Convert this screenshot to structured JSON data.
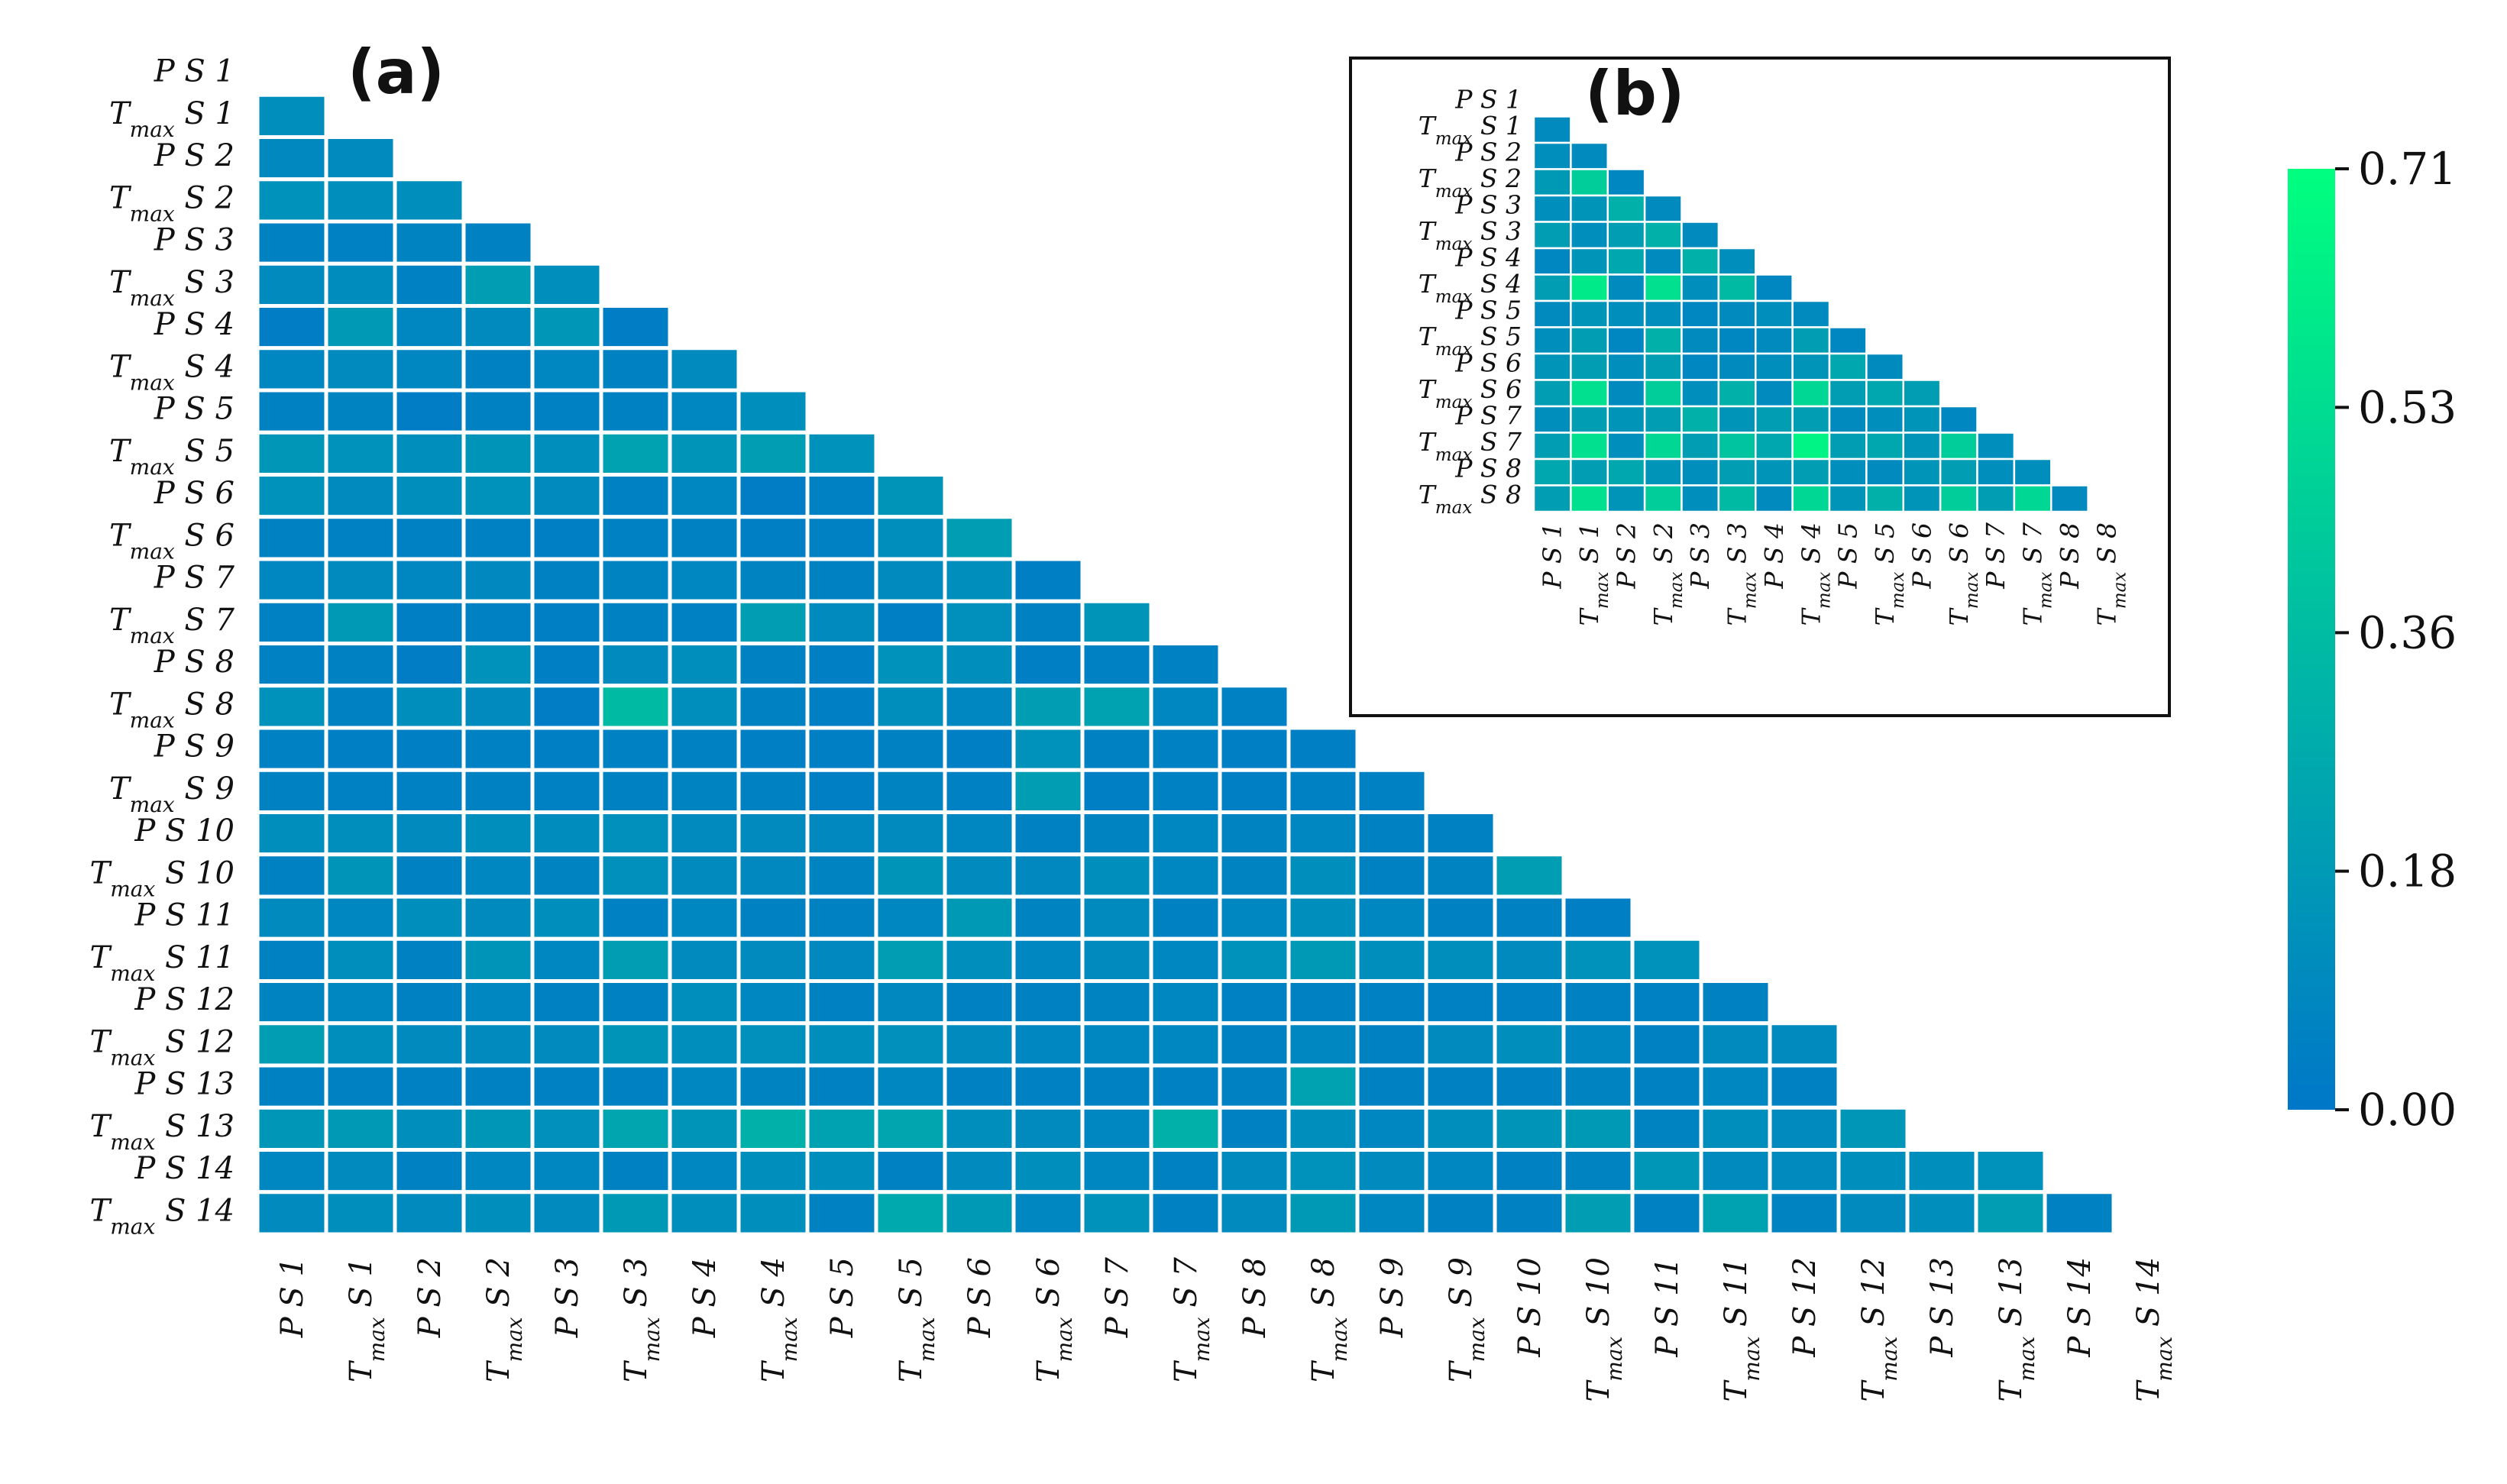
{
  "chart_data": [
    {
      "type": "heatmap",
      "panel_label": "(a)",
      "layout": "lower-triangle",
      "row_labels": [
        "P S 1",
        "T_max S 1",
        "P S 2",
        "T_max S 2",
        "P S 3",
        "T_max S 3",
        "P S 4",
        "T_max S 4",
        "P S 5",
        "T_max S 5",
        "P S 6",
        "T_max S 6",
        "P S 7",
        "T_max S 7",
        "P S 8",
        "T_max S 8",
        "P S 9",
        "T_max S 9",
        "P S 10",
        "T_max S 10",
        "P S 11",
        "T_max S 11",
        "P S 12",
        "T_max S 12",
        "P S 13",
        "T_max S 13",
        "P S 14",
        "T_max S 14"
      ],
      "col_labels": [
        "P S 1",
        "T_max S 1",
        "P S 2",
        "T_max S 2",
        "P S 3",
        "T_max S 3",
        "P S 4",
        "T_max S 4",
        "P S 5",
        "T_max S 5",
        "P S 6",
        "T_max S 6",
        "P S 7",
        "T_max S 7",
        "P S 8",
        "T_max S 8",
        "P S 9",
        "T_max S 9",
        "P S 10",
        "T_max S 10",
        "P S 11",
        "T_max S 11",
        "P S 12",
        "T_max S 12",
        "P S 13",
        "T_max S 13",
        "P S 14",
        "T_max S 14"
      ],
      "values": [
        [],
        [
          0.12
        ],
        [
          0.09,
          0.1
        ],
        [
          0.14,
          0.12,
          0.12
        ],
        [
          0.06,
          0.05,
          0.07,
          0.06
        ],
        [
          0.1,
          0.11,
          0.05,
          0.2,
          0.12
        ],
        [
          0.03,
          0.18,
          0.08,
          0.1,
          0.16,
          0.03
        ],
        [
          0.08,
          0.1,
          0.08,
          0.06,
          0.08,
          0.06,
          0.1
        ],
        [
          0.06,
          0.07,
          0.03,
          0.06,
          0.05,
          0.06,
          0.08,
          0.12
        ],
        [
          0.16,
          0.14,
          0.12,
          0.15,
          0.12,
          0.22,
          0.15,
          0.2,
          0.14
        ],
        [
          0.14,
          0.1,
          0.12,
          0.14,
          0.1,
          0.05,
          0.08,
          0.03,
          0.05,
          0.15
        ],
        [
          0.06,
          0.05,
          0.05,
          0.05,
          0.04,
          0.05,
          0.06,
          0.04,
          0.05,
          0.12,
          0.2
        ],
        [
          0.08,
          0.1,
          0.08,
          0.09,
          0.06,
          0.07,
          0.08,
          0.07,
          0.06,
          0.1,
          0.12,
          0.04
        ],
        [
          0.05,
          0.18,
          0.04,
          0.05,
          0.04,
          0.06,
          0.05,
          0.2,
          0.1,
          0.04,
          0.13,
          0.06,
          0.15
        ],
        [
          0.05,
          0.06,
          0.03,
          0.14,
          0.04,
          0.1,
          0.12,
          0.06,
          0.04,
          0.14,
          0.12,
          0.04,
          0.05,
          0.05
        ],
        [
          0.14,
          0.06,
          0.12,
          0.1,
          0.03,
          0.35,
          0.12,
          0.06,
          0.04,
          0.12,
          0.08,
          0.2,
          0.22,
          0.08,
          0.05
        ],
        [
          0.05,
          0.04,
          0.04,
          0.05,
          0.04,
          0.05,
          0.06,
          0.04,
          0.04,
          0.06,
          0.04,
          0.14,
          0.06,
          0.05,
          0.04,
          0.04
        ],
        [
          0.06,
          0.05,
          0.05,
          0.06,
          0.05,
          0.06,
          0.07,
          0.06,
          0.04,
          0.07,
          0.05,
          0.2,
          0.04,
          0.05,
          0.04,
          0.05,
          0.05
        ],
        [
          0.12,
          0.12,
          0.1,
          0.12,
          0.11,
          0.13,
          0.1,
          0.1,
          0.09,
          0.1,
          0.08,
          0.06,
          0.07,
          0.08,
          0.07,
          0.08,
          0.06,
          0.06
        ],
        [
          0.06,
          0.15,
          0.06,
          0.08,
          0.07,
          0.13,
          0.1,
          0.09,
          0.07,
          0.15,
          0.1,
          0.09,
          0.12,
          0.08,
          0.07,
          0.12,
          0.06,
          0.07,
          0.2
        ],
        [
          0.1,
          0.08,
          0.12,
          0.1,
          0.12,
          0.05,
          0.08,
          0.06,
          0.06,
          0.08,
          0.18,
          0.07,
          0.1,
          0.06,
          0.08,
          0.12,
          0.08,
          0.06,
          0.06,
          0.04
        ],
        [
          0.06,
          0.12,
          0.06,
          0.15,
          0.08,
          0.2,
          0.1,
          0.1,
          0.09,
          0.2,
          0.12,
          0.08,
          0.1,
          0.08,
          0.14,
          0.18,
          0.12,
          0.12,
          0.1,
          0.14,
          0.14
        ],
        [
          0.07,
          0.08,
          0.06,
          0.08,
          0.06,
          0.06,
          0.12,
          0.08,
          0.06,
          0.09,
          0.06,
          0.06,
          0.07,
          0.08,
          0.05,
          0.06,
          0.05,
          0.05,
          0.05,
          0.06,
          0.05,
          0.06
        ],
        [
          0.2,
          0.12,
          0.1,
          0.1,
          0.1,
          0.15,
          0.12,
          0.13,
          0.12,
          0.13,
          0.1,
          0.08,
          0.08,
          0.08,
          0.06,
          0.08,
          0.06,
          0.1,
          0.12,
          0.08,
          0.06,
          0.1,
          0.1
        ],
        [
          0.06,
          0.06,
          0.05,
          0.06,
          0.05,
          0.06,
          0.08,
          0.07,
          0.06,
          0.08,
          0.06,
          0.05,
          0.06,
          0.05,
          0.06,
          0.22,
          0.06,
          0.06,
          0.06,
          0.07,
          0.06,
          0.08,
          0.06
        ],
        [
          0.16,
          0.18,
          0.12,
          0.16,
          0.13,
          0.24,
          0.15,
          0.3,
          0.22,
          0.24,
          0.12,
          0.1,
          0.08,
          0.3,
          0.06,
          0.12,
          0.08,
          0.12,
          0.15,
          0.18,
          0.07,
          0.12,
          0.1,
          0.16
        ],
        [
          0.08,
          0.1,
          0.06,
          0.08,
          0.08,
          0.06,
          0.08,
          0.12,
          0.12,
          0.06,
          0.1,
          0.12,
          0.08,
          0.06,
          0.1,
          0.14,
          0.1,
          0.08,
          0.06,
          0.07,
          0.16,
          0.1,
          0.1,
          0.12,
          0.12,
          0.14
        ],
        [
          0.1,
          0.12,
          0.1,
          0.12,
          0.1,
          0.18,
          0.12,
          0.12,
          0.06,
          0.26,
          0.18,
          0.08,
          0.14,
          0.06,
          0.1,
          0.18,
          0.08,
          0.06,
          0.06,
          0.2,
          0.06,
          0.22,
          0.07,
          0.1,
          0.12,
          0.2,
          0.06
        ]
      ]
    },
    {
      "type": "heatmap",
      "panel_label": "(b)",
      "layout": "lower-triangle",
      "inset": true,
      "row_labels": [
        "P S 1",
        "T_max S 1",
        "P S 2",
        "T_max S 2",
        "P S 3",
        "T_max S 3",
        "P S 4",
        "T_max S 4",
        "P S 5",
        "T_max S 5",
        "P S 6",
        "T_max S 6",
        "P S 7",
        "T_max S 7",
        "P S 8",
        "T_max S 8"
      ],
      "col_labels": [
        "P S 1",
        "T_max S 1",
        "P S 2",
        "T_max S 2",
        "P S 3",
        "T_max S 3",
        "P S 4",
        "T_max S 4",
        "P S 5",
        "T_max S 5",
        "P S 6",
        "T_max S 6",
        "P S 7",
        "T_max S 7",
        "P S 8",
        "T_max S 8"
      ],
      "values": [
        [],
        [
          0.1
        ],
        [
          0.12,
          0.1
        ],
        [
          0.18,
          0.45,
          0.08
        ],
        [
          0.12,
          0.15,
          0.3,
          0.1
        ],
        [
          0.2,
          0.12,
          0.2,
          0.3,
          0.1
        ],
        [
          0.08,
          0.15,
          0.25,
          0.1,
          0.3,
          0.12
        ],
        [
          0.2,
          0.6,
          0.1,
          0.55,
          0.12,
          0.35,
          0.08
        ],
        [
          0.1,
          0.15,
          0.12,
          0.12,
          0.08,
          0.1,
          0.12,
          0.1
        ],
        [
          0.12,
          0.2,
          0.08,
          0.3,
          0.1,
          0.08,
          0.1,
          0.2,
          0.08
        ],
        [
          0.15,
          0.2,
          0.12,
          0.2,
          0.08,
          0.1,
          0.12,
          0.15,
          0.25,
          0.1
        ],
        [
          0.2,
          0.55,
          0.1,
          0.45,
          0.12,
          0.3,
          0.1,
          0.5,
          0.2,
          0.25,
          0.2
        ],
        [
          0.12,
          0.2,
          0.15,
          0.2,
          0.3,
          0.15,
          0.2,
          0.2,
          0.1,
          0.12,
          0.15,
          0.08
        ],
        [
          0.2,
          0.55,
          0.12,
          0.5,
          0.2,
          0.4,
          0.25,
          0.65,
          0.2,
          0.25,
          0.15,
          0.45,
          0.12
        ],
        [
          0.25,
          0.2,
          0.25,
          0.15,
          0.12,
          0.2,
          0.15,
          0.2,
          0.12,
          0.1,
          0.15,
          0.2,
          0.12,
          0.12
        ],
        [
          0.2,
          0.55,
          0.15,
          0.45,
          0.12,
          0.35,
          0.1,
          0.5,
          0.15,
          0.3,
          0.15,
          0.45,
          0.2,
          0.5,
          0.1
        ]
      ]
    }
  ],
  "colorbar": {
    "min": 0.0,
    "max": 0.71,
    "ticks": [
      "0.00",
      "0.18",
      "0.36",
      "0.53",
      "0.71"
    ],
    "tick_values": [
      0.0,
      0.18,
      0.36,
      0.53,
      0.71
    ],
    "color_low": "#0077C8",
    "color_high": "#00FF7F"
  }
}
